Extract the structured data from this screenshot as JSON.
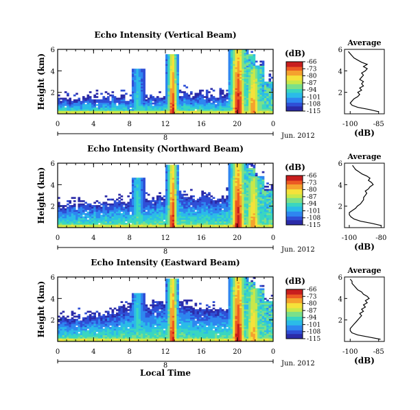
{
  "figure": {
    "date_label": "Jun. 2012",
    "day_label": "8",
    "xlabel": "Local Time"
  },
  "colorbar": {
    "unit": "(dB)",
    "ticks": [
      "-66",
      "-73",
      "-80",
      "-87",
      "-94",
      "-101",
      "-108",
      "-115"
    ],
    "range": [
      -115,
      -66
    ],
    "colors": [
      "#2b2ba8",
      "#2f4fd6",
      "#2e86f0",
      "#2bbbe8",
      "#3ad6c0",
      "#7be08a",
      "#c8e84a",
      "#f5e23a",
      "#f5a22e",
      "#ec5a23",
      "#c81e1e"
    ]
  },
  "chart_data": [
    {
      "type": "heatmap",
      "title": "Echo Intensity (Vertical Beam)",
      "ylabel": "Height (km)",
      "x_ticks": [
        "0",
        "4",
        "8",
        "12",
        "16",
        "20",
        "0"
      ],
      "y_ticks": [
        "2",
        "4",
        "6"
      ],
      "xlim": [
        0,
        24
      ],
      "ylim": [
        0,
        6
      ],
      "echo_top_km": [
        1.4,
        1.3,
        1.35,
        1.4,
        1.45,
        1.45,
        1.5,
        1.4,
        1.45,
        1.6,
        1.55,
        1.7,
        1.8,
        1.9,
        1.8,
        1.75,
        1.7,
        1.6,
        1.7,
        1.8,
        6.0,
        5.5,
        4.5,
        3.0
      ],
      "plumes": [
        {
          "t": 8.9,
          "top_km": 4.2,
          "peak_db": -95
        },
        {
          "t": 12.8,
          "top_km": 5.5,
          "peak_db": -68
        },
        {
          "t": 20.1,
          "top_km": 6.0,
          "peak_db": -66
        },
        {
          "t": 21.8,
          "top_km": 4.2,
          "peak_db": -75
        }
      ],
      "average": {
        "title": "Average",
        "xlabel": "(dB)",
        "x_ticks": [
          "-100",
          "-85"
        ],
        "y_ticks": [
          "2",
          "4",
          "6"
        ],
        "xlim": [
          -103,
          -82
        ],
        "height_km": [
          0.2,
          0.4,
          0.6,
          0.8,
          1.0,
          1.2,
          1.4,
          1.6,
          1.8,
          2.0,
          2.2,
          2.4,
          2.6,
          2.8,
          3.0,
          3.2,
          3.4,
          3.6,
          3.8,
          4.0,
          4.2,
          4.4,
          4.6,
          4.8,
          5.0,
          5.2,
          5.4,
          5.6,
          5.8
        ],
        "values_db": [
          -85,
          -90,
          -96,
          -99,
          -100,
          -99,
          -98,
          -96,
          -95,
          -96,
          -94,
          -95,
          -93,
          -94,
          -93,
          -95,
          -94,
          -93,
          -94,
          -92,
          -91,
          -93,
          -91,
          -94,
          -96,
          -98,
          -99,
          -100,
          -101
        ]
      }
    },
    {
      "type": "heatmap",
      "title": "Echo Intensity (Northward Beam)",
      "ylabel": "Height (km)",
      "x_ticks": [
        "0",
        "4",
        "8",
        "12",
        "16",
        "20",
        "0"
      ],
      "y_ticks": [
        "2",
        "4",
        "6"
      ],
      "xlim": [
        0,
        24
      ],
      "ylim": [
        0,
        6
      ],
      "echo_top_km": [
        2.0,
        2.1,
        2.0,
        2.2,
        2.1,
        2.2,
        2.4,
        2.3,
        2.6,
        2.8,
        2.7,
        3.0,
        3.1,
        3.3,
        3.0,
        2.8,
        2.9,
        2.8,
        2.9,
        3.2,
        6.0,
        5.6,
        4.6,
        3.5
      ],
      "plumes": [
        {
          "t": 8.9,
          "top_km": 4.6,
          "peak_db": -92
        },
        {
          "t": 12.8,
          "top_km": 5.8,
          "peak_db": -68
        },
        {
          "t": 20.1,
          "top_km": 6.0,
          "peak_db": -66
        },
        {
          "t": 21.8,
          "top_km": 4.8,
          "peak_db": -76
        }
      ],
      "average": {
        "title": "Average",
        "xlabel": "(dB)",
        "x_ticks": [
          "-100",
          "-80"
        ],
        "y_ticks": [
          "2",
          "4",
          "6"
        ],
        "xlim": [
          -103,
          -78
        ],
        "height_km": [
          0.2,
          0.4,
          0.6,
          0.8,
          1.0,
          1.2,
          1.4,
          1.6,
          1.8,
          2.0,
          2.2,
          2.4,
          2.6,
          2.8,
          3.0,
          3.2,
          3.4,
          3.6,
          3.8,
          4.0,
          4.2,
          4.4,
          4.6,
          4.8,
          5.0,
          5.2,
          5.4,
          5.6,
          5.8
        ],
        "values_db": [
          -80,
          -86,
          -93,
          -97,
          -99,
          -100,
          -100,
          -98,
          -96,
          -95,
          -93,
          -92,
          -91,
          -91,
          -90,
          -89,
          -90,
          -88,
          -87,
          -85,
          -86,
          -88,
          -87,
          -89,
          -92,
          -94,
          -96,
          -97,
          -98
        ]
      }
    },
    {
      "type": "heatmap",
      "title": "Echo Intensity (Eastward Beam)",
      "ylabel": "Height (km)",
      "x_ticks": [
        "0",
        "4",
        "8",
        "12",
        "16",
        "20",
        "0"
      ],
      "y_ticks": [
        "2",
        "4",
        "6"
      ],
      "xlim": [
        0,
        24
      ],
      "ylim": [
        0,
        6
      ],
      "echo_top_km": [
        2.1,
        2.2,
        2.3,
        2.5,
        2.4,
        2.6,
        2.8,
        3.0,
        3.2,
        3.4,
        3.2,
        3.6,
        3.8,
        3.9,
        3.5,
        3.0,
        3.1,
        3.0,
        3.1,
        3.4,
        6.0,
        5.5,
        4.8,
        3.8
      ],
      "plumes": [
        {
          "t": 8.9,
          "top_km": 4.5,
          "peak_db": -92
        },
        {
          "t": 12.8,
          "top_km": 5.9,
          "peak_db": -68
        },
        {
          "t": 20.1,
          "top_km": 6.0,
          "peak_db": -66
        },
        {
          "t": 21.8,
          "top_km": 4.9,
          "peak_db": -76
        }
      ],
      "average": {
        "title": "Average",
        "xlabel": "(dB)",
        "x_ticks": [
          "-100",
          "-85"
        ],
        "y_ticks": [
          "2",
          "4",
          "6"
        ],
        "xlim": [
          -103,
          -82
        ],
        "height_km": [
          0.2,
          0.4,
          0.6,
          0.8,
          1.0,
          1.2,
          1.4,
          1.6,
          1.8,
          2.0,
          2.2,
          2.4,
          2.6,
          2.8,
          3.0,
          3.2,
          3.4,
          3.6,
          3.8,
          4.0,
          4.2,
          4.4,
          4.6,
          4.8,
          5.0,
          5.2,
          5.4,
          5.6,
          5.8
        ],
        "values_db": [
          -84,
          -90,
          -96,
          -99,
          -100,
          -100,
          -99,
          -98,
          -97,
          -96,
          -95,
          -94,
          -95,
          -93,
          -94,
          -92,
          -93,
          -91,
          -92,
          -90,
          -91,
          -93,
          -94,
          -96,
          -97,
          -98,
          -99,
          -99,
          -100
        ]
      }
    }
  ]
}
